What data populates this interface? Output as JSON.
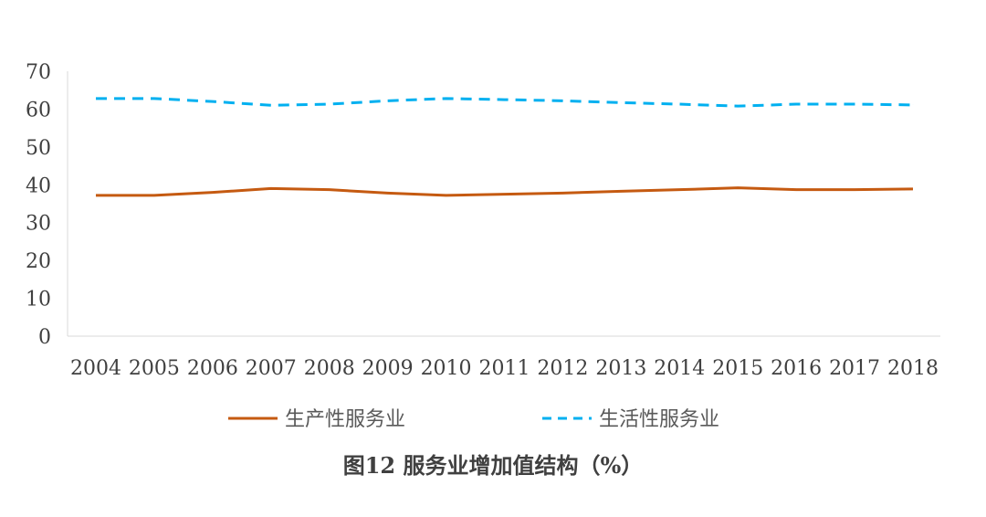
{
  "chart_data": {
    "type": "line",
    "title": "图12 服务业增加值结构（%）",
    "x": [
      "2004",
      "2005",
      "2006",
      "2007",
      "2008",
      "2009",
      "2010",
      "2011",
      "2012",
      "2013",
      "2014",
      "2015",
      "2016",
      "2017",
      "2018"
    ],
    "ylim": [
      0,
      70
    ],
    "yticks": [
      0,
      10,
      20,
      30,
      40,
      50,
      60,
      70
    ],
    "grid": false,
    "legend_position": "bottom",
    "series": [
      {
        "name": "生产性服务业",
        "color": "#C55A11",
        "style": "solid",
        "values": [
          37.2,
          37.2,
          38.0,
          39.0,
          38.7,
          37.8,
          37.2,
          37.5,
          37.8,
          38.3,
          38.7,
          39.2,
          38.7,
          38.7,
          38.9
        ]
      },
      {
        "name": "生活性服务业",
        "color": "#00B0F0",
        "style": "dashed",
        "values": [
          62.8,
          62.8,
          62.0,
          61.0,
          61.3,
          62.2,
          62.8,
          62.5,
          62.2,
          61.7,
          61.3,
          60.8,
          61.3,
          61.3,
          61.1
        ]
      }
    ]
  }
}
